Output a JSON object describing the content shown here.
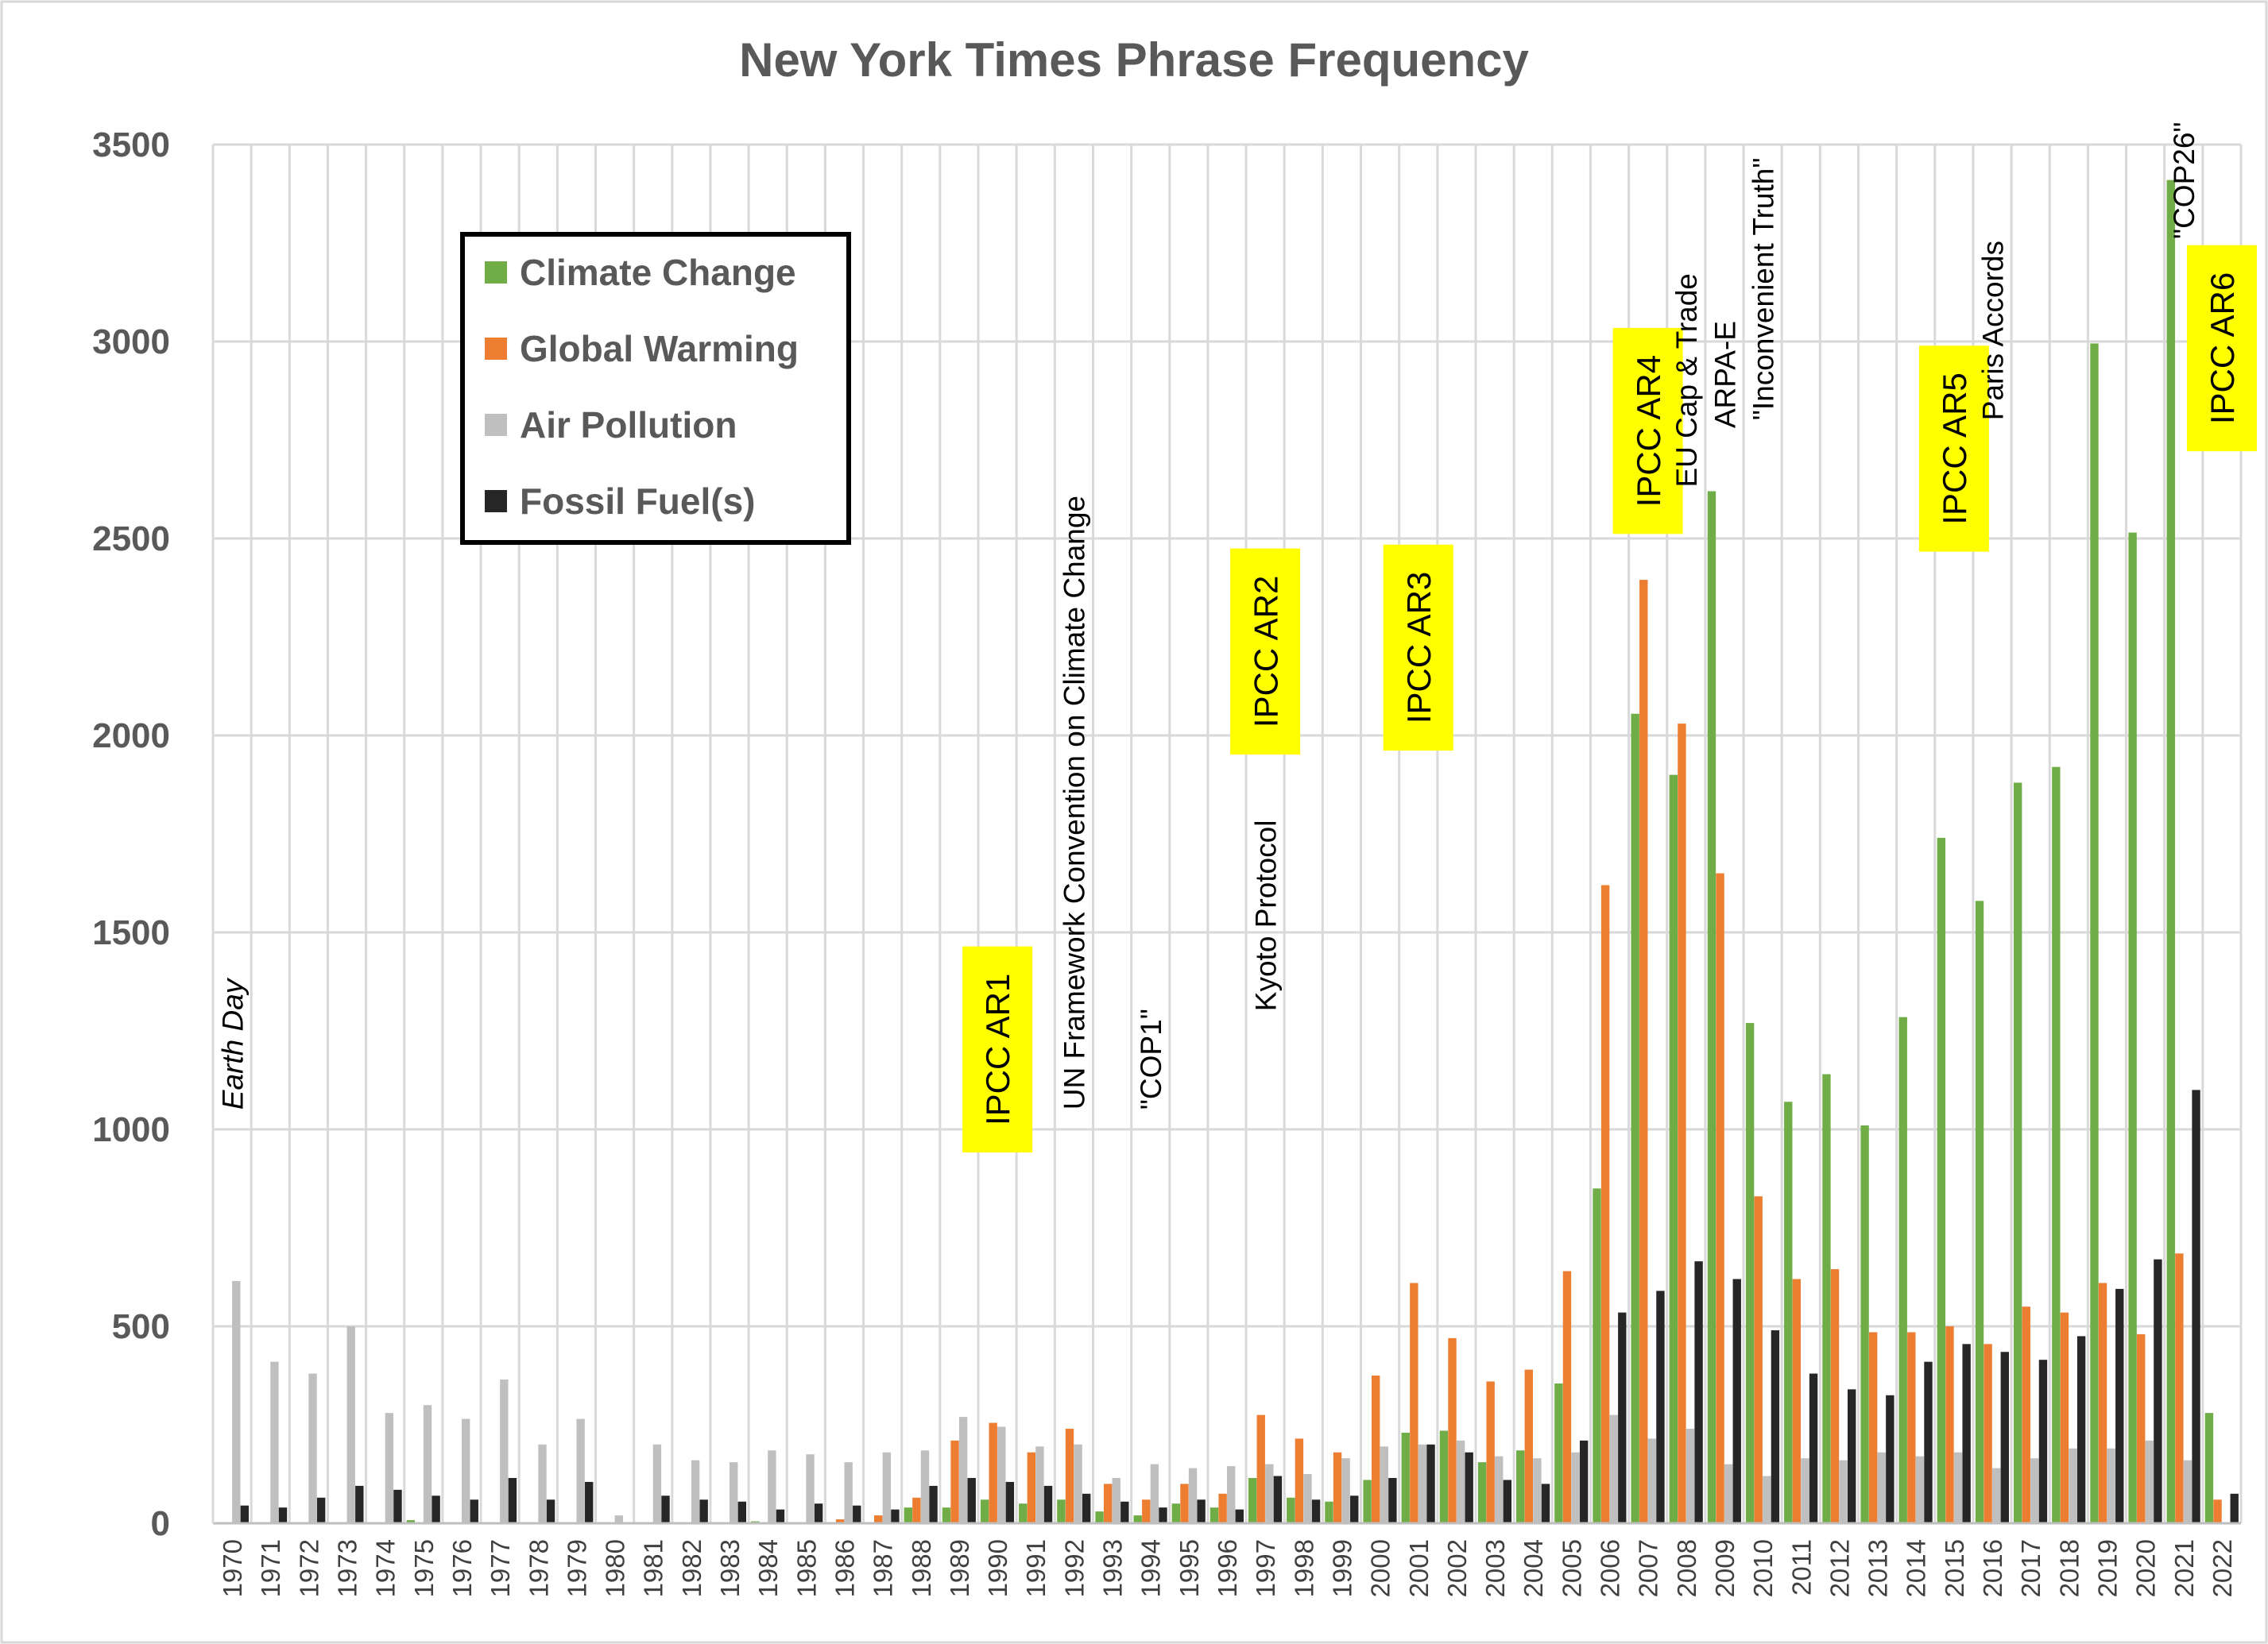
{
  "chart_data": {
    "type": "bar",
    "title": "New York Times Phrase Frequency",
    "xlabel": "",
    "ylabel": "",
    "ylim": [
      0,
      3500
    ],
    "yticks": [
      0,
      500,
      1000,
      1500,
      2000,
      2500,
      3000,
      3500
    ],
    "grid": true,
    "legend_position": "top-left",
    "categories": [
      "1970",
      "1971",
      "1972",
      "1973",
      "1974",
      "1975",
      "1976",
      "1977",
      "1978",
      "1979",
      "1980",
      "1981",
      "1982",
      "1983",
      "1984",
      "1985",
      "1986",
      "1987",
      "1988",
      "1989",
      "1990",
      "1991",
      "1992",
      "1993",
      "1994",
      "1995",
      "1996",
      "1997",
      "1998",
      "1999",
      "2000",
      "2001",
      "2002",
      "2003",
      "2004",
      "2005",
      "2006",
      "2007",
      "2008",
      "2009",
      "2010",
      "2011",
      "2012",
      "2013",
      "2014",
      "2015",
      "2016",
      "2017",
      "2018",
      "2019",
      "2020",
      "2021",
      "2022"
    ],
    "series": [
      {
        "name": "Climate Change",
        "color": "#70ad47",
        "values": [
          0,
          0,
          0,
          0,
          0,
          8,
          0,
          0,
          0,
          0,
          0,
          0,
          0,
          0,
          5,
          0,
          0,
          0,
          40,
          40,
          60,
          50,
          60,
          30,
          20,
          50,
          40,
          115,
          65,
          55,
          110,
          230,
          235,
          155,
          185,
          355,
          850,
          2055,
          1900,
          2620,
          1270,
          1070,
          1140,
          1010,
          1285,
          1740,
          1580,
          1880,
          1920,
          2995,
          2515,
          3410,
          280
        ]
      },
      {
        "name": "Global Warming",
        "color": "#ed7d31",
        "values": [
          0,
          0,
          0,
          0,
          0,
          0,
          0,
          0,
          0,
          0,
          0,
          0,
          0,
          0,
          0,
          0,
          10,
          20,
          65,
          210,
          255,
          180,
          240,
          100,
          60,
          100,
          75,
          275,
          215,
          180,
          375,
          610,
          470,
          360,
          390,
          640,
          1620,
          2395,
          2030,
          1650,
          830,
          620,
          645,
          485,
          485,
          500,
          455,
          550,
          535,
          610,
          480,
          685,
          60
        ]
      },
      {
        "name": "Air Pollution",
        "color": "#bfbfbf",
        "values": [
          615,
          410,
          380,
          500,
          280,
          300,
          265,
          365,
          200,
          265,
          20,
          200,
          160,
          155,
          185,
          175,
          155,
          180,
          185,
          270,
          245,
          195,
          200,
          115,
          150,
          140,
          145,
          150,
          125,
          165,
          195,
          200,
          210,
          170,
          165,
          180,
          275,
          215,
          240,
          150,
          120,
          165,
          160,
          180,
          170,
          180,
          140,
          165,
          190,
          190,
          210,
          160,
          0
        ]
      },
      {
        "name": "Fossil Fuel(s)",
        "color": "#262626",
        "values": [
          45,
          40,
          65,
          95,
          85,
          70,
          60,
          115,
          60,
          105,
          0,
          70,
          60,
          55,
          35,
          50,
          45,
          35,
          95,
          115,
          105,
          95,
          75,
          55,
          40,
          60,
          35,
          120,
          60,
          70,
          115,
          200,
          180,
          110,
          100,
          210,
          535,
          590,
          665,
          620,
          490,
          380,
          340,
          325,
          410,
          455,
          435,
          415,
          475,
          595,
          670,
          1100,
          75
        ]
      }
    ],
    "annotations": [
      {
        "text": "Earth Day",
        "x": "1970",
        "y": 1050,
        "style": "italic",
        "highlight": false
      },
      {
        "text": "IPCC AR1",
        "x": "1990",
        "y": 1010,
        "highlight": true
      },
      {
        "text": "UN Framework Convention on Climate Change",
        "x": "1992",
        "y": 1050,
        "highlight": false
      },
      {
        "text": "\"COP1\"",
        "x": "1994",
        "y": 1050,
        "highlight": false
      },
      {
        "text": "Kyoto Protocol",
        "x": "1997",
        "y": 1300,
        "highlight": false
      },
      {
        "text": "IPCC AR2",
        "x": "1997",
        "y": 2020,
        "highlight": true
      },
      {
        "text": "IPCC AR3",
        "x": "2001",
        "y": 2030,
        "highlight": true
      },
      {
        "text": "IPCC AR4",
        "x": "2007",
        "y": 2580,
        "highlight": true
      },
      {
        "text": "EU Cap & Trade",
        "x": "2008",
        "y": 2630,
        "highlight": false
      },
      {
        "text": "ARPA-E",
        "x": "2009",
        "y": 2780,
        "highlight": false
      },
      {
        "text": "\"Inconvenient Truth\"",
        "x": "2010",
        "y": 2800,
        "highlight": false
      },
      {
        "text": "IPCC AR5",
        "x": "2015",
        "y": 2535,
        "highlight": true
      },
      {
        "text": "Paris Accords",
        "x": "2016",
        "y": 2800,
        "highlight": false
      },
      {
        "text": "\"COP26\"",
        "x": "2021",
        "y": 3260,
        "highlight": false
      },
      {
        "text": "IPCC AR6",
        "x": "2022",
        "y": 2790,
        "highlight": true
      }
    ]
  }
}
